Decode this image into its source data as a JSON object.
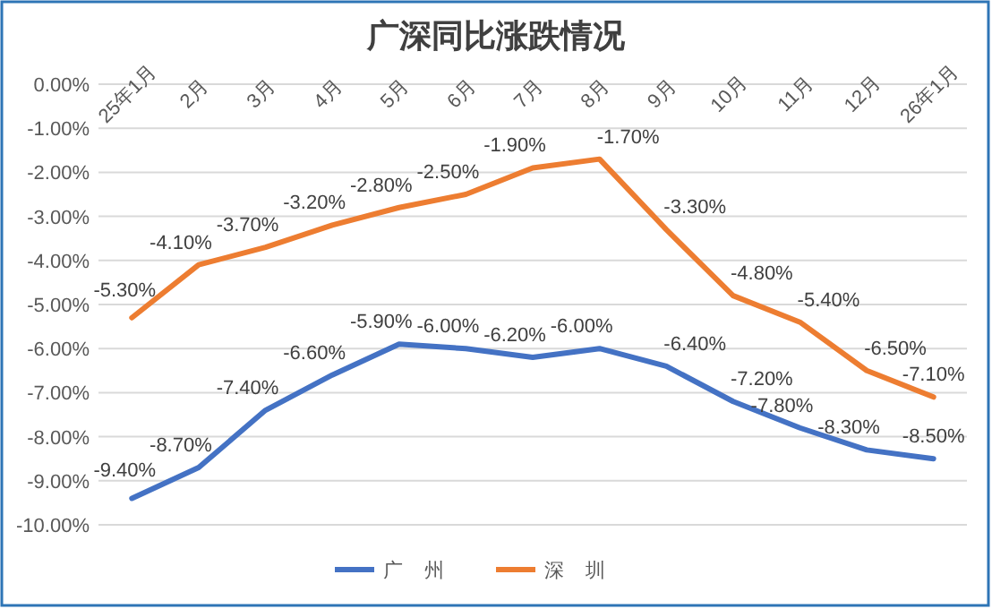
{
  "chart_data": {
    "type": "line",
    "title": "广深同比涨跌情况",
    "categories": [
      "25年1月",
      "2月",
      "3月",
      "4月",
      "5月",
      "6月",
      "7月",
      "8月",
      "9月",
      "10月",
      "11月",
      "12月",
      "26年1月"
    ],
    "series": [
      {
        "name": "广    州",
        "color": "#4472c4",
        "values": [
          -9.4,
          -8.7,
          -7.4,
          -6.6,
          -5.9,
          -6.0,
          -6.2,
          -6.0,
          -6.4,
          -7.2,
          -7.8,
          -8.3,
          -8.5
        ],
        "value_labels": [
          "-9.40%",
          "-8.70%",
          "-7.40%",
          "-6.60%",
          "-5.90%",
          "-6.00%",
          "-6.20%",
          "-6.00%",
          "-6.40%",
          "-7.20%",
          "-7.80%",
          "-8.30%",
          "-8.50%"
        ]
      },
      {
        "name": "深    圳",
        "color": "#ed7d31",
        "values": [
          -5.3,
          -4.1,
          -3.7,
          -3.2,
          -2.8,
          -2.5,
          -1.9,
          -1.7,
          -3.3,
          -4.8,
          -5.4,
          -6.5,
          -7.1
        ],
        "value_labels": [
          "-5.30%",
          "-4.10%",
          "-3.70%",
          "-3.20%",
          "-2.80%",
          "-2.50%",
          "-1.90%",
          "-1.70%",
          "-3.30%",
          "-4.80%",
          "-5.40%",
          "-6.50%",
          "-7.10%"
        ]
      }
    ],
    "ylim": [
      -10,
      0
    ],
    "yticks": [
      {
        "value": 0,
        "label": "0.00%"
      },
      {
        "value": -1,
        "label": "-1.00%"
      },
      {
        "value": -2,
        "label": "-2.00%"
      },
      {
        "value": -3,
        "label": "-3.00%"
      },
      {
        "value": -4,
        "label": "-4.00%"
      },
      {
        "value": -5,
        "label": "-5.00%"
      },
      {
        "value": -6,
        "label": "-6.00%"
      },
      {
        "value": -7,
        "label": "-7.00%"
      },
      {
        "value": -8,
        "label": "-8.00%"
      },
      {
        "value": -9,
        "label": "-9.00%"
      },
      {
        "value": -10,
        "label": "-10.00%"
      }
    ],
    "grid": "y",
    "legend": "bottom",
    "marker": "none",
    "line_style": "solid"
  }
}
